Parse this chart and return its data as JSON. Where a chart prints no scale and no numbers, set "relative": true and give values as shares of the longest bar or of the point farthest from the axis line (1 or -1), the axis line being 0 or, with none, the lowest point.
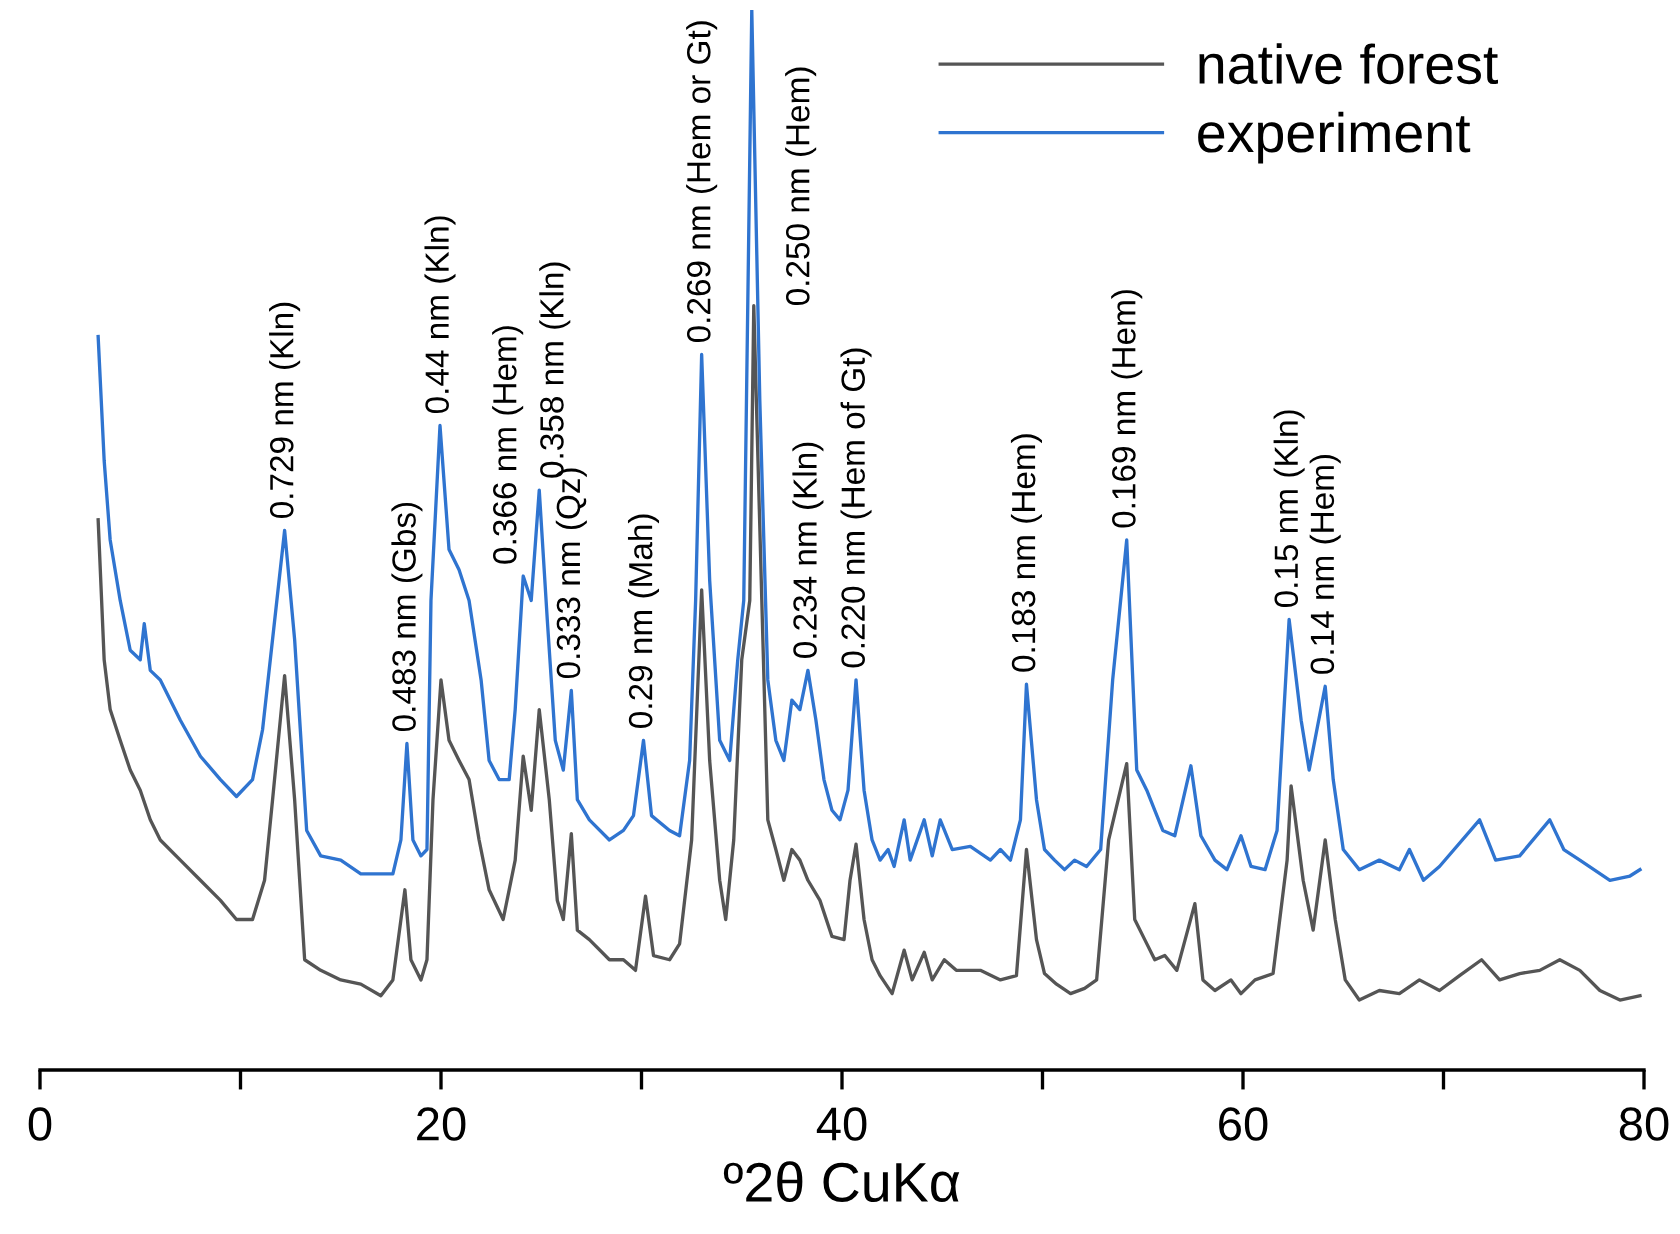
{
  "chart_data": {
    "type": "line",
    "relative": true,
    "xlabel": "º2θ CuKα",
    "xlim": [
      0,
      80
    ],
    "xticks": [
      0,
      {
        "value": 10,
        "label": null
      },
      20,
      {
        "value": 30,
        "label": null
      },
      40,
      {
        "value": 50,
        "label": null
      },
      60,
      {
        "value": 70,
        "label": null
      },
      80
    ],
    "tick_labels": "x",
    "grid": false,
    "legend": "top right",
    "marker": "none",
    "line_style": "solid",
    "series": [
      {
        "name": "native forest",
        "color": "#555555",
        "x": [
          2.9,
          3.2,
          3.5,
          4.0,
          4.5,
          5.0,
          5.5,
          6.0,
          7.0,
          8.0,
          9.0,
          9.8,
          10.6,
          11.2,
          11.6,
          12.2,
          12.7,
          13.2,
          14.0,
          15.0,
          16.0,
          17.0,
          17.6,
          18.2,
          18.5,
          19.0,
          19.3,
          19.6,
          20.0,
          20.4,
          20.9,
          21.4,
          21.9,
          22.4,
          23.1,
          23.7,
          24.1,
          24.5,
          24.9,
          25.4,
          25.8,
          26.1,
          26.5,
          26.8,
          27.4,
          28.4,
          29.1,
          29.7,
          30.2,
          30.6,
          31.4,
          31.9,
          32.5,
          33.0,
          33.4,
          33.9,
          34.2,
          34.6,
          35.0,
          35.4,
          35.6,
          36.0,
          36.3,
          36.7,
          37.1,
          37.5,
          37.9,
          38.3,
          38.9,
          39.5,
          40.1,
          40.4,
          40.7,
          41.1,
          41.5,
          41.9,
          42.5,
          43.1,
          43.5,
          44.1,
          44.5,
          45.1,
          45.7,
          46.9,
          47.9,
          48.7,
          49.2,
          49.7,
          50.1,
          50.7,
          51.4,
          52.1,
          52.7,
          53.3,
          54.2,
          54.6,
          55.1,
          55.6,
          56.1,
          56.7,
          57.6,
          58.0,
          58.6,
          59.4,
          59.9,
          60.6,
          61.5,
          62.2,
          62.4,
          63.0,
          63.5,
          64.1,
          64.6,
          65.1,
          65.8,
          66.8,
          67.8,
          68.8,
          69.8,
          70.8,
          71.9,
          72.8,
          73.8,
          74.8,
          75.8,
          76.8,
          77.8,
          78.8,
          79.8
        ],
        "values": [
          0.519,
          0.387,
          0.34,
          0.311,
          0.283,
          0.264,
          0.236,
          0.217,
          0.198,
          0.179,
          0.16,
          0.142,
          0.142,
          0.179,
          0.255,
          0.372,
          0.255,
          0.104,
          0.094,
          0.085,
          0.081,
          0.07,
          0.085,
          0.17,
          0.104,
          0.085,
          0.104,
          0.255,
          0.368,
          0.311,
          0.292,
          0.274,
          0.217,
          0.17,
          0.142,
          0.198,
          0.296,
          0.245,
          0.34,
          0.255,
          0.16,
          0.142,
          0.223,
          0.132,
          0.123,
          0.104,
          0.104,
          0.094,
          0.164,
          0.108,
          0.104,
          0.119,
          0.217,
          0.453,
          0.292,
          0.179,
          0.142,
          0.217,
          0.387,
          0.443,
          0.721,
          0.443,
          0.236,
          0.208,
          0.179,
          0.208,
          0.198,
          0.179,
          0.16,
          0.126,
          0.123,
          0.179,
          0.213,
          0.142,
          0.104,
          0.089,
          0.072,
          0.113,
          0.085,
          0.111,
          0.085,
          0.104,
          0.094,
          0.094,
          0.085,
          0.089,
          0.208,
          0.123,
          0.091,
          0.081,
          0.072,
          0.077,
          0.085,
          0.217,
          0.289,
          0.142,
          0.123,
          0.104,
          0.108,
          0.094,
          0.157,
          0.085,
          0.075,
          0.085,
          0.072,
          0.085,
          0.091,
          0.198,
          0.268,
          0.179,
          0.132,
          0.217,
          0.142,
          0.085,
          0.066,
          0.075,
          0.072,
          0.085,
          0.075,
          0.089,
          0.104,
          0.085,
          0.091,
          0.094,
          0.104,
          0.094,
          0.075,
          0.066,
          0.07
        ]
      },
      {
        "name": "experiment",
        "color": "#2f74d0",
        "x": [
          2.9,
          3.2,
          3.5,
          4.0,
          4.5,
          5.0,
          5.2,
          5.5,
          6.0,
          7.0,
          8.0,
          9.0,
          9.8,
          10.6,
          11.1,
          12.2,
          12.7,
          13.3,
          14.0,
          15.0,
          16.0,
          17.0,
          17.6,
          18.0,
          18.3,
          18.6,
          19.0,
          19.3,
          19.5,
          19.95,
          20.4,
          20.9,
          21.4,
          22.0,
          22.4,
          22.9,
          23.4,
          23.7,
          24.1,
          24.5,
          24.9,
          25.3,
          25.7,
          26.1,
          26.5,
          26.8,
          27.4,
          28.4,
          29.1,
          29.6,
          30.1,
          30.5,
          31.4,
          31.9,
          32.4,
          32.7,
          33.0,
          33.4,
          33.9,
          34.4,
          34.8,
          35.1,
          35.5,
          35.9,
          36.3,
          36.7,
          37.1,
          37.5,
          37.9,
          38.3,
          38.7,
          39.1,
          39.5,
          39.9,
          40.3,
          40.7,
          41.1,
          41.5,
          41.9,
          42.3,
          42.6,
          43.1,
          43.4,
          44.1,
          44.5,
          44.9,
          45.5,
          46.4,
          47.4,
          47.9,
          48.4,
          48.9,
          49.2,
          49.7,
          50.1,
          50.6,
          51.1,
          51.6,
          52.2,
          52.9,
          53.5,
          54.2,
          54.7,
          55.2,
          55.6,
          56.0,
          56.6,
          57.4,
          57.9,
          58.6,
          59.2,
          59.9,
          60.4,
          61.1,
          61.7,
          62.3,
          62.9,
          63.3,
          64.1,
          64.5,
          65.0,
          65.8,
          66.8,
          67.8,
          68.3,
          69.0,
          69.8,
          71.8,
          72.6,
          73.8,
          75.3,
          76.0,
          76.8,
          78.3,
          79.3,
          79.8
        ],
        "values": [
          0.692,
          0.575,
          0.5,
          0.443,
          0.396,
          0.387,
          0.421,
          0.377,
          0.368,
          0.33,
          0.296,
          0.274,
          0.258,
          0.274,
          0.321,
          0.509,
          0.406,
          0.226,
          0.202,
          0.198,
          0.185,
          0.185,
          0.185,
          0.217,
          0.308,
          0.217,
          0.202,
          0.208,
          0.443,
          0.608,
          0.491,
          0.472,
          0.443,
          0.368,
          0.292,
          0.274,
          0.274,
          0.34,
          0.466,
          0.443,
          0.547,
          0.425,
          0.311,
          0.283,
          0.358,
          0.255,
          0.236,
          0.217,
          0.226,
          0.24,
          0.311,
          0.24,
          0.226,
          0.221,
          0.292,
          0.443,
          0.675,
          0.462,
          0.311,
          0.292,
          0.387,
          0.443,
          1.0,
          0.632,
          0.368,
          0.311,
          0.292,
          0.349,
          0.34,
          0.377,
          0.33,
          0.274,
          0.245,
          0.236,
          0.264,
          0.368,
          0.264,
          0.217,
          0.198,
          0.208,
          0.192,
          0.236,
          0.198,
          0.236,
          0.202,
          0.236,
          0.208,
          0.211,
          0.198,
          0.208,
          0.198,
          0.236,
          0.364,
          0.255,
          0.208,
          0.198,
          0.189,
          0.198,
          0.192,
          0.208,
          0.368,
          0.5,
          0.283,
          0.264,
          0.245,
          0.226,
          0.221,
          0.287,
          0.221,
          0.198,
          0.189,
          0.221,
          0.192,
          0.189,
          0.226,
          0.425,
          0.33,
          0.283,
          0.362,
          0.274,
          0.208,
          0.189,
          0.198,
          0.189,
          0.208,
          0.179,
          0.192,
          0.236,
          0.198,
          0.202,
          0.236,
          0.208,
          0.198,
          0.179,
          0.183,
          0.189
        ]
      }
    ],
    "annotations": [
      {
        "text": "0.729 nm (Kln)",
        "x": 12.2,
        "y": 0.509
      },
      {
        "text": "0.483 nm (Gbs)",
        "x": 18.3,
        "y": 0.308
      },
      {
        "text": "0.44 nm (Kln)",
        "x": 19.95,
        "y": 0.608
      },
      {
        "text": "0.366 nm (Hem)",
        "x": 24.1,
        "y": 0.466
      },
      {
        "text": "0.358 nm (Kln)",
        "x": 24.9,
        "y": 0.547
      },
      {
        "text": "0.333 nm (Qz)",
        "x": 26.5,
        "y": 0.358
      },
      {
        "text": "0.29 nm (Mah)",
        "x": 30.1,
        "y": 0.311
      },
      {
        "text": "0.269 nm (Hem or Gt)",
        "x": 33.0,
        "y": 0.675
      },
      {
        "text": "0.250 nm (Hem)",
        "x": 35.5,
        "y": 1.0
      },
      {
        "text": "0.234 nm (Kln)",
        "x": 38.3,
        "y": 0.377
      },
      {
        "text": "0.220 nm (Hem of Gt)",
        "x": 40.7,
        "y": 0.368
      },
      {
        "text": "0.183 nm (Hem)",
        "x": 49.2,
        "y": 0.364
      },
      {
        "text": "0.169 nm (Hem)",
        "x": 54.2,
        "y": 0.5
      },
      {
        "text": "0.15 nm (Kln)",
        "x": 62.3,
        "y": 0.425
      },
      {
        "text": "0.14 nm (Hem)",
        "x": 64.1,
        "y": 0.362
      }
    ]
  }
}
